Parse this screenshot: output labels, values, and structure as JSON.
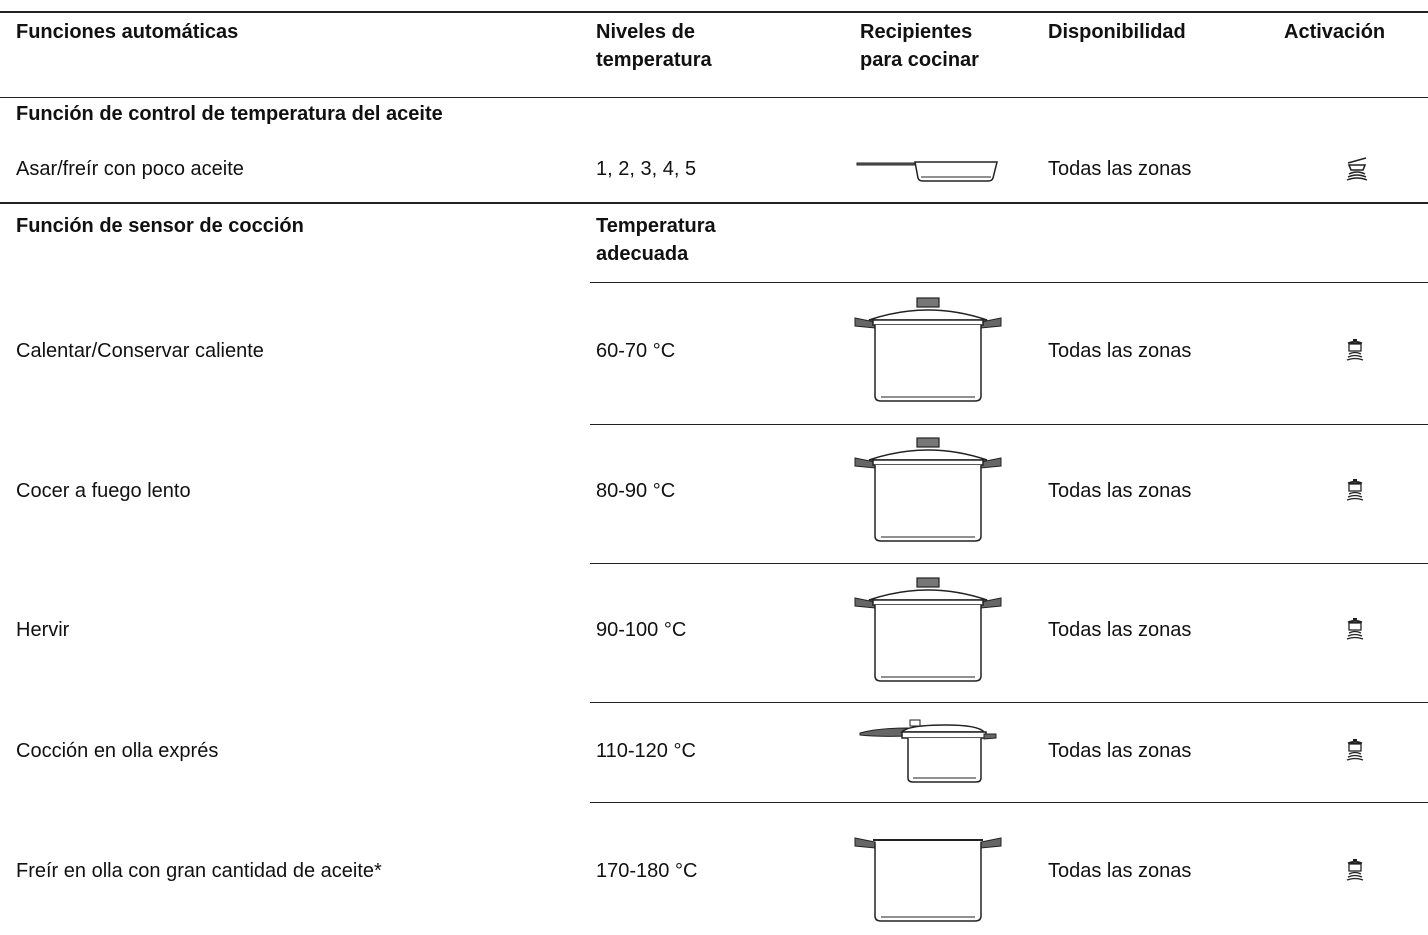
{
  "table": {
    "columns": [
      "Funciones automáticas",
      "Niveles de temperatura",
      "Recipientes para cocinar",
      "Disponibilidad",
      "Activación"
    ],
    "sections": [
      {
        "title": "Función de control de temperatura del aceite",
        "rows": [
          {
            "function": "Asar/freír con poco aceite",
            "level": "1, 2, 3, 4, 5",
            "availability": "Todas las zonas"
          }
        ]
      },
      {
        "title": "Función de sensor de cocción",
        "subheader": "Temperatura adecuada",
        "rows": [
          {
            "function": "Calentar/Conservar caliente",
            "level": "60-70 °C",
            "availability": "Todas las zonas"
          },
          {
            "function": "Cocer a fuego lento",
            "level": "80-90 °C",
            "availability": "Todas las zonas"
          },
          {
            "function": "Hervir",
            "level": "90-100 °C",
            "availability": "Todas las zonas"
          },
          {
            "function": "Cocción en olla exprés",
            "level": "110-120 °C",
            "availability": "Todas las zonas"
          },
          {
            "function": "Freír en olla con gran cantidad de aceite*",
            "level": "170-180 °C",
            "availability": "Todas las zonas"
          }
        ]
      }
    ]
  }
}
